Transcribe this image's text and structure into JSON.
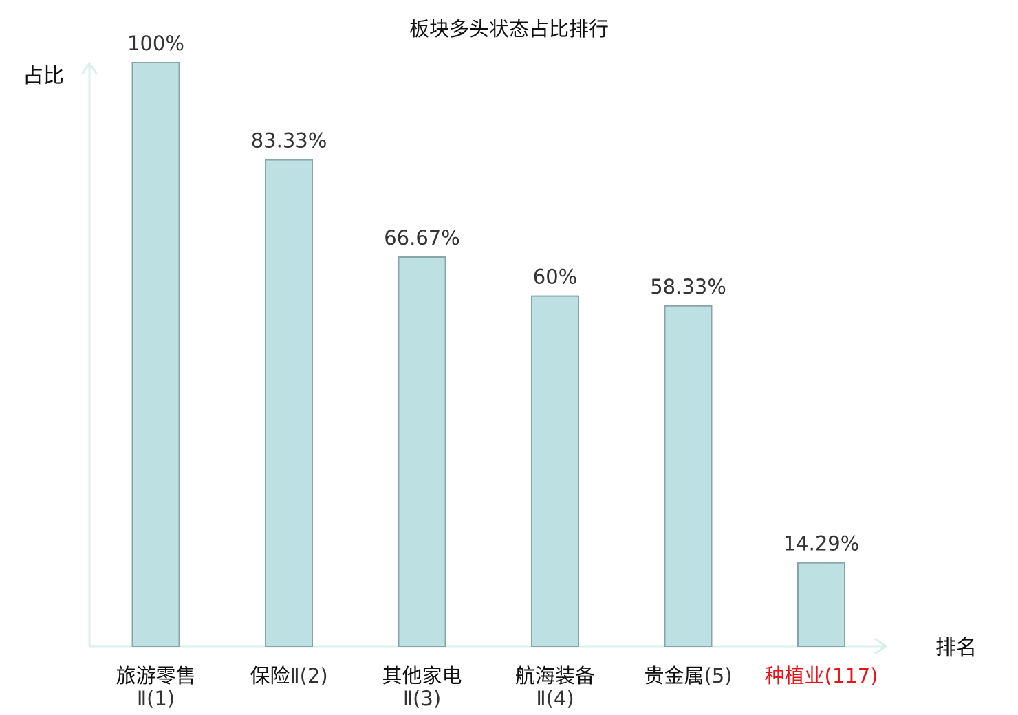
{
  "chart_data": {
    "type": "bar",
    "title": "板块多头状态占比排行",
    "ylabel": "占比",
    "xlabel": "排名",
    "ylim": [
      0,
      100
    ],
    "grid": false,
    "categories": [
      {
        "name": "旅游零售",
        "rank": "Ⅱ(1)",
        "highlight": false
      },
      {
        "name": "保险",
        "rank": "Ⅱ(2)",
        "highlight": false
      },
      {
        "name": "其他家电",
        "rank": "Ⅱ(3)",
        "highlight": false
      },
      {
        "name": "航海装备",
        "rank": "Ⅱ(4)",
        "highlight": false
      },
      {
        "name": "贵金属",
        "rank": "(5)",
        "highlight": false
      },
      {
        "name": "种植业",
        "rank": "(117)",
        "highlight": true
      }
    ],
    "values": [
      100,
      83.33,
      66.67,
      60,
      58.33,
      14.29
    ],
    "value_labels": [
      "100%",
      "83.33%",
      "66.67%",
      "60%",
      "58.33%",
      "14.29%"
    ],
    "colors": {
      "bar_fill": "#bde0e3",
      "bar_stroke": "#87a6aa",
      "axis": "#d9efec",
      "highlight": "#e8141b"
    }
  }
}
